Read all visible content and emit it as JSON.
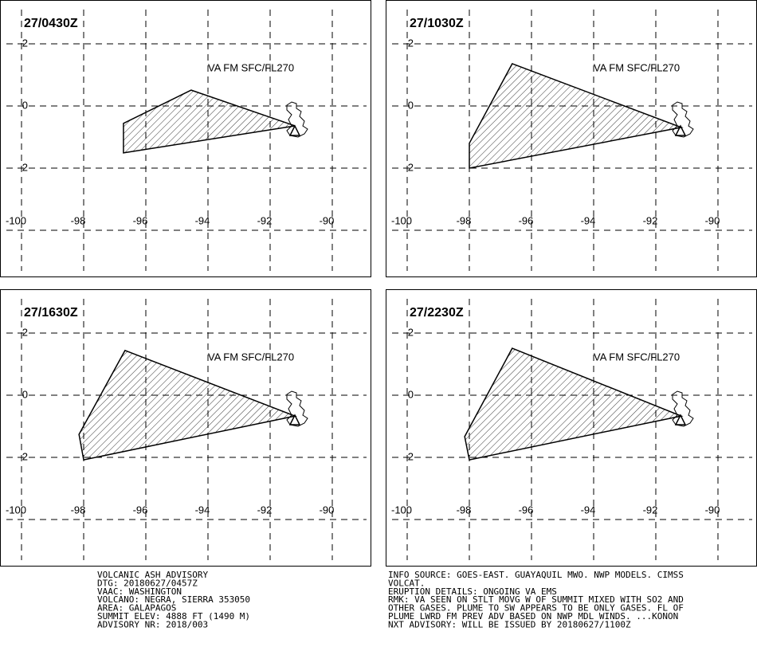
{
  "panels": [
    {
      "time": "27/0430Z",
      "annotation": "VA FM SFC/FL270",
      "plume": {
        "lons": [
          -94.54,
          -91.2,
          -96.72,
          -96.72
        ],
        "lats": [
          0.51,
          -0.64,
          -1.51,
          -0.56
        ]
      }
    },
    {
      "time": "27/1030Z",
      "annotation": "VA FM SFC/FL270",
      "plume": {
        "lons": [
          -96.62,
          -91.18,
          -98.0,
          -98.0
        ],
        "lats": [
          1.36,
          -0.69,
          -2.0,
          -1.2
        ]
      }
    },
    {
      "time": "27/1630Z",
      "annotation": "VA FM SFC/FL270",
      "plume": {
        "lons": [
          -96.67,
          -91.2,
          -98.0,
          -98.15
        ],
        "lats": [
          1.44,
          -0.67,
          -2.08,
          -1.26
        ]
      }
    },
    {
      "time": "27/2230Z",
      "annotation": "VA FM SFC/FL270",
      "plume": {
        "lons": [
          -96.62,
          -91.18,
          -98.0,
          -98.15
        ],
        "lats": [
          1.51,
          -0.67,
          -2.08,
          -1.33
        ]
      }
    }
  ],
  "lon_ticks": [
    -100,
    -98,
    -96,
    -94,
    -92,
    -90
  ],
  "lat_ticks": [
    2,
    0,
    -2
  ],
  "advisory_left": [
    "VOLCANIC ASH ADVISORY",
    "DTG: 20180627/0457Z",
    "VAAC: WASHINGTON",
    "VOLCANO: NEGRA, SIERRA 353050",
    "AREA: GALAPAGOS",
    "SUMMIT ELEV: 4888 FT (1490 M)",
    "ADVISORY NR: 2018/003"
  ],
  "advisory_right": [
    "INFO SOURCE: GOES-EAST. GUAYAQUIL MWO. NWP MODELS. CIMSS",
    "VOLCAT.",
    "ERUPTION DETAILS: ONGOING VA EMS",
    "RMK: VA SEEN ON STLT MOVG W OF SUMMIT MIXED WITH SO2 AND",
    "OTHER GASES. PLUME TO SW APPEARS TO BE ONLY GASES. FL OF",
    "PLUME LWRD FM PREV ADV BASED ON NWP MDL WINDS. ...KONON",
    "NXT ADVISORY: WILL BE ISSUED BY 20180627/1100Z"
  ]
}
